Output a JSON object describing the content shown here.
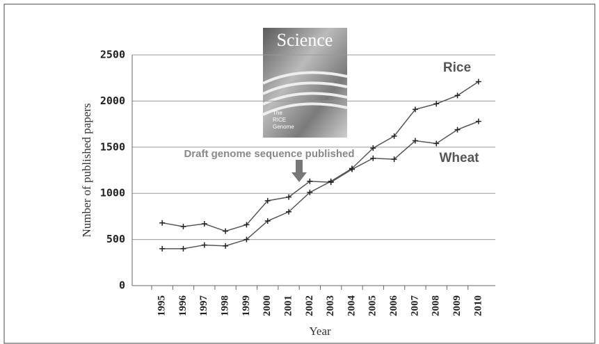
{
  "chart_data": {
    "type": "line",
    "x_label": "Year",
    "y_label": "Number of published papers",
    "categories": [
      "1995",
      "1996",
      "1997",
      "1998",
      "1999",
      "2000",
      "2001",
      "2002",
      "2003",
      "2004",
      "2005",
      "2006",
      "2007",
      "2008",
      "2009",
      "2010"
    ],
    "series": [
      {
        "name": "Rice",
        "color": "#555555",
        "values": [
          400,
          400,
          440,
          430,
          500,
          700,
          800,
          1010,
          1130,
          1270,
          1490,
          1620,
          1910,
          1970,
          2060,
          2210
        ]
      },
      {
        "name": "Wheat",
        "color": "#555555",
        "values": [
          680,
          640,
          670,
          590,
          660,
          920,
          960,
          1130,
          1120,
          1260,
          1380,
          1370,
          1570,
          1540,
          1690,
          1780
        ]
      }
    ],
    "ylim": [
      0,
      2500
    ],
    "yticks": [
      0,
      500,
      1000,
      1500,
      2000,
      2500
    ],
    "grid": true,
    "annotation": "Draft genome sequence published",
    "cover": {
      "title": "Science",
      "lines": [
        "The",
        "RICE",
        "Genome"
      ]
    }
  }
}
